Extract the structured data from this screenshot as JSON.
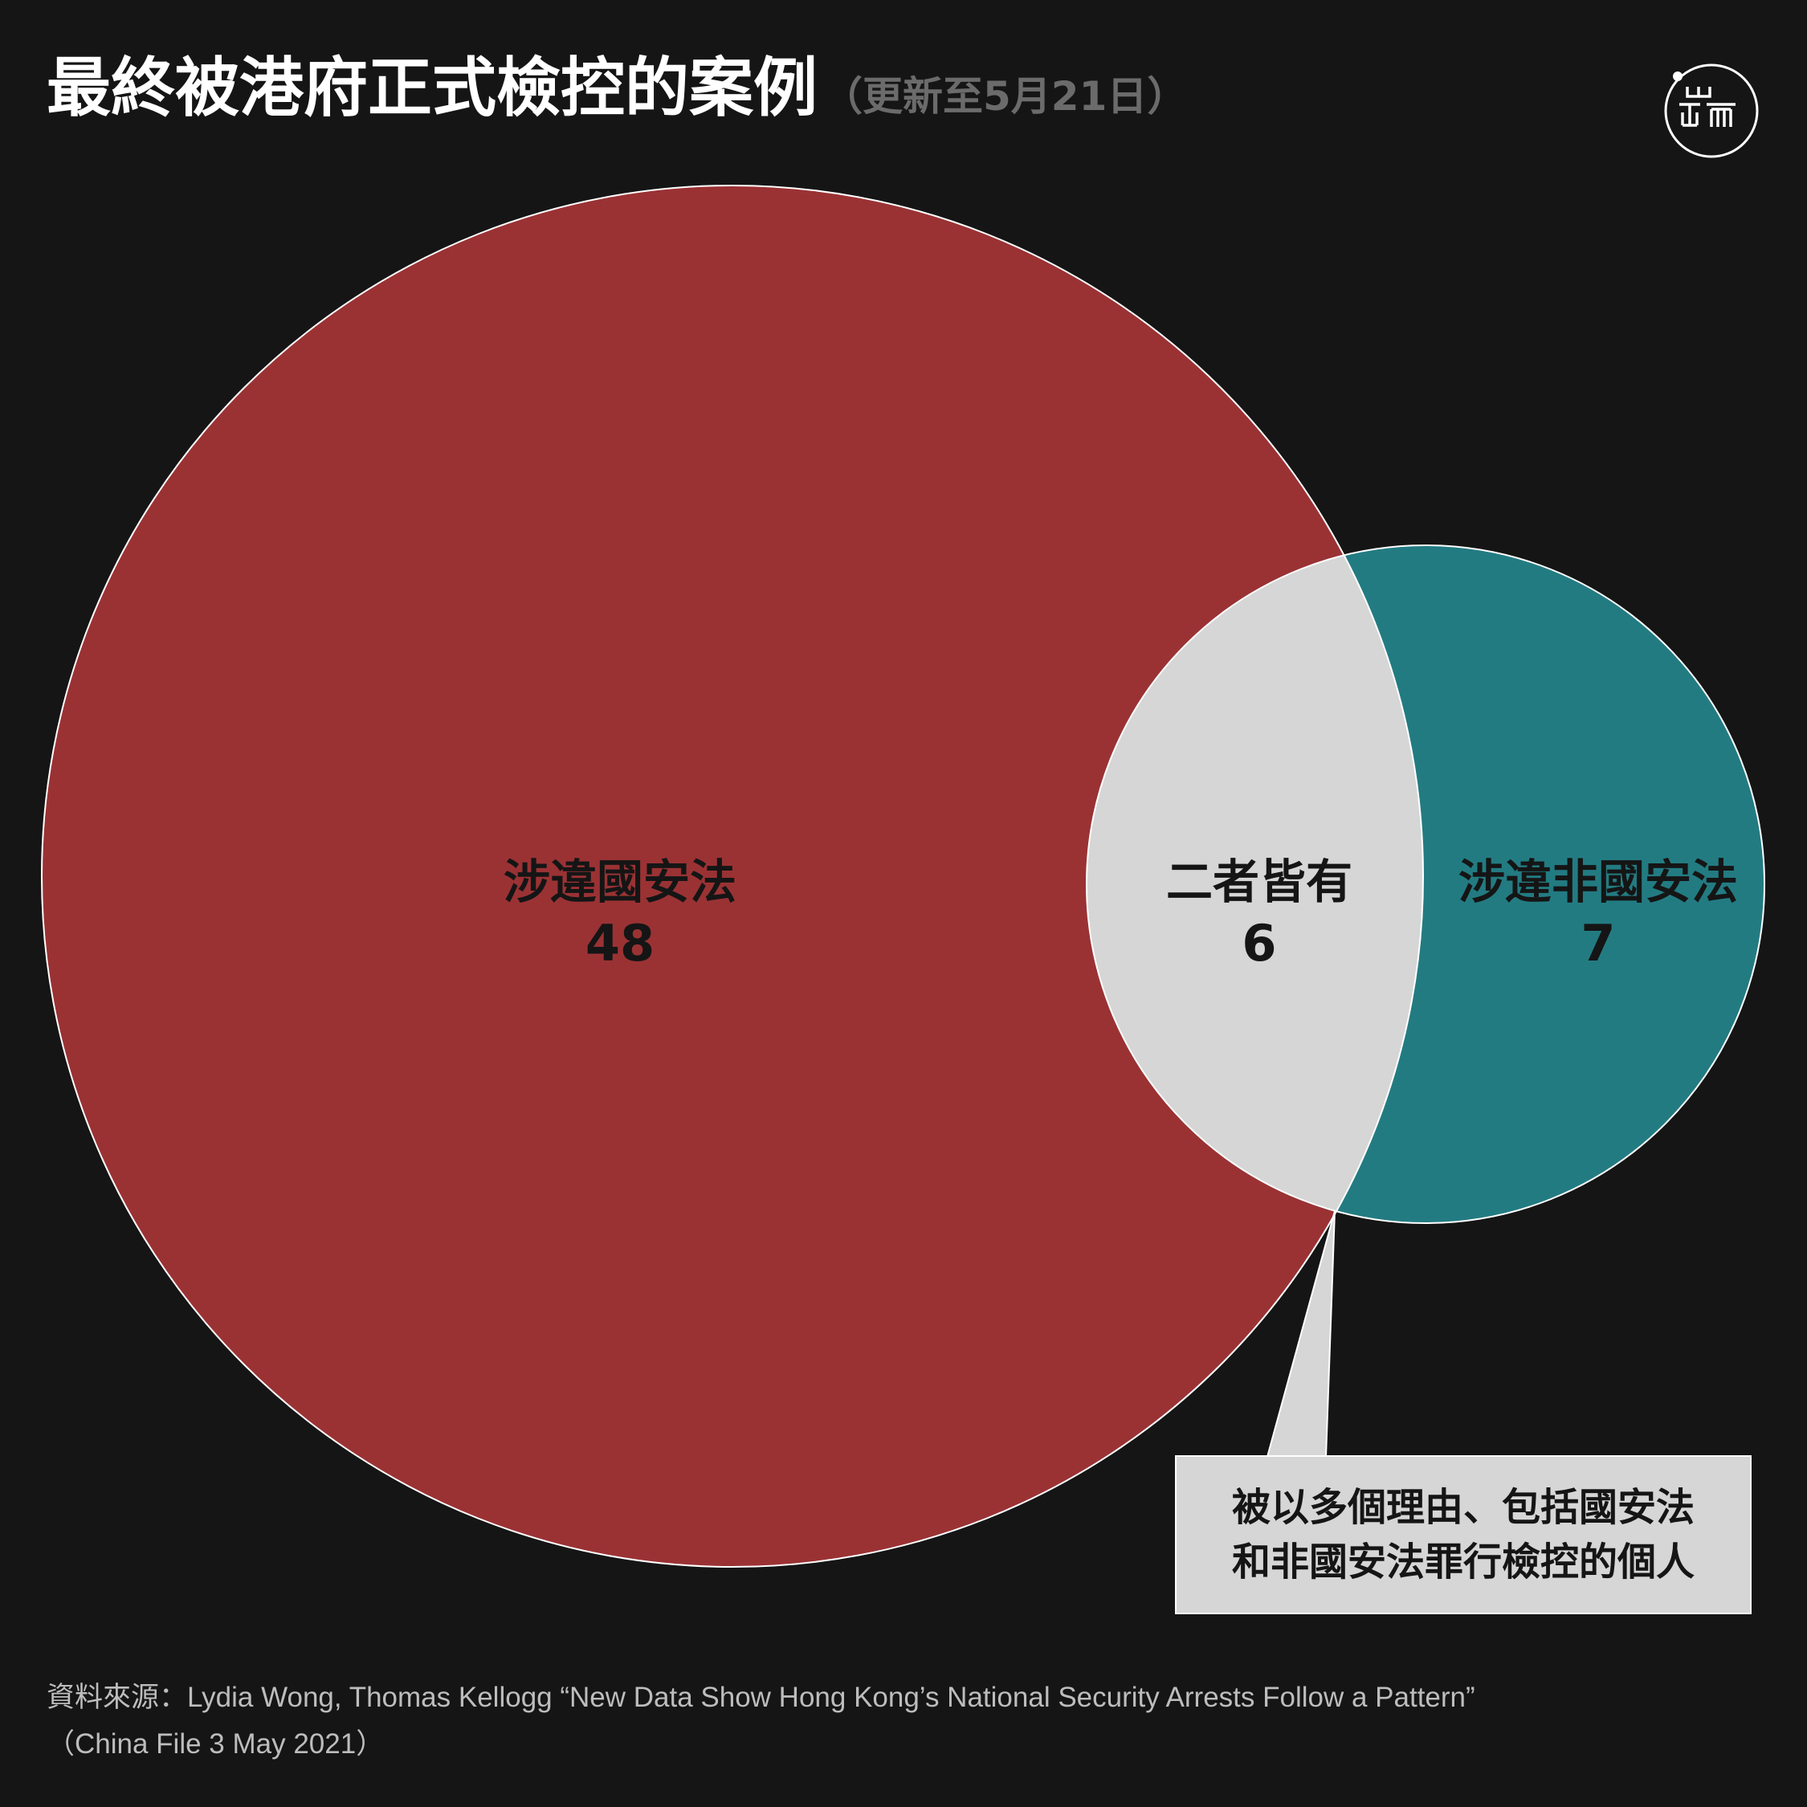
{
  "header": {
    "title": "最終被港府正式檢控的案例",
    "subtitle": "（更新至5月21日）"
  },
  "colors": {
    "background": "#151515",
    "nsl_circle": "#9a3234",
    "non_nsl_circle": "#237b82",
    "overlap": "#d6d6d6",
    "outline": "#ffffff"
  },
  "logo": {
    "icon": "initium-logo-icon"
  },
  "venn": {
    "nsl": {
      "label": "涉違國安法",
      "value": "48"
    },
    "both": {
      "label": "二者皆有",
      "value": "6"
    },
    "non_nsl": {
      "label": "涉違非國安法",
      "value": "7"
    }
  },
  "callout": {
    "line1": "被以多個理由、包括國安法",
    "line2": "和非國安法罪行檢控的個人"
  },
  "source": {
    "line1": "資料來源：Lydia Wong, Thomas Kellogg “New Data Show Hong Kong’s National Security Arrests Follow a Pattern”",
    "line2": "（China File 3 May 2021）"
  }
}
